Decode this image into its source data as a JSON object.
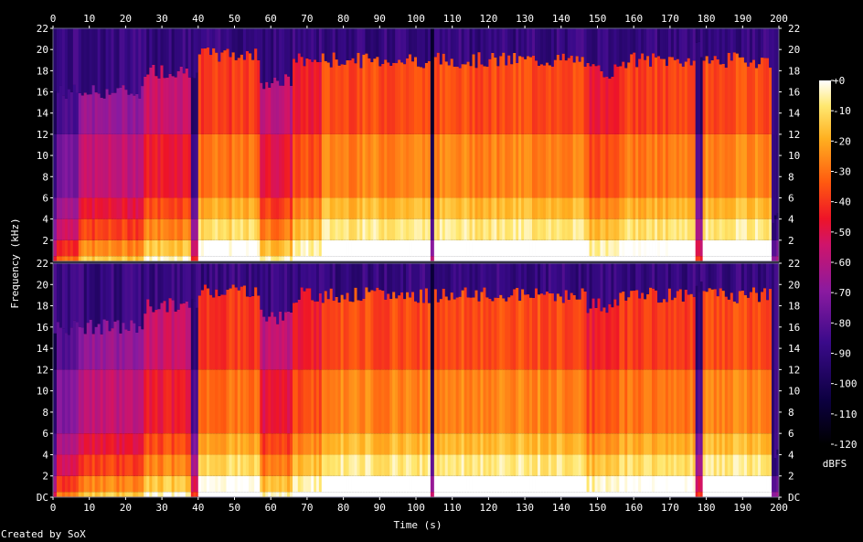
{
  "chart_data": {
    "type": "heatmap",
    "xlabel": "Time (s)",
    "ylabel": "Frequency (kHz)",
    "x_ticks": [
      0,
      10,
      20,
      30,
      40,
      50,
      60,
      70,
      80,
      90,
      100,
      110,
      120,
      130,
      140,
      150,
      160,
      170,
      180,
      190,
      200
    ],
    "xlim": [
      0,
      200
    ],
    "channels": [
      {
        "y_ticks": [
          "22",
          "20",
          "18",
          "16",
          "14",
          "12",
          "10",
          "8",
          "6",
          "4",
          "2"
        ]
      },
      {
        "y_ticks": [
          "22",
          "20",
          "18",
          "16",
          "14",
          "12",
          "10",
          "8",
          "6",
          "4",
          "2",
          "DC"
        ]
      }
    ],
    "ylim_khz": [
      0,
      22
    ],
    "colorbar": {
      "label": "dBFS",
      "ticks": [
        "+0",
        "-10",
        "-20",
        "-30",
        "-40",
        "-50",
        "-60",
        "-70",
        "-80",
        "-90",
        "-100",
        "-110",
        "-120"
      ],
      "range": [
        -120,
        0
      ]
    },
    "segments": [
      {
        "t0": 0,
        "t1": 1,
        "level": 0.25,
        "cutoff": 16
      },
      {
        "t0": 1,
        "t1": 7,
        "level": 0.4,
        "cutoff": 16
      },
      {
        "t0": 7,
        "t1": 25,
        "level": 0.52,
        "cutoff": 16
      },
      {
        "t0": 25,
        "t1": 38,
        "level": 0.62,
        "cutoff": 18
      },
      {
        "t0": 38,
        "t1": 40,
        "level": 0.3,
        "cutoff": 18
      },
      {
        "t0": 40,
        "t1": 57,
        "level": 0.75,
        "cutoff": 19.5
      },
      {
        "t0": 57,
        "t1": 66,
        "level": 0.6,
        "cutoff": 17
      },
      {
        "t0": 66,
        "t1": 74,
        "level": 0.7,
        "cutoff": 19
      },
      {
        "t0": 74,
        "t1": 104,
        "level": 0.78,
        "cutoff": 19
      },
      {
        "t0": 104,
        "t1": 105,
        "level": 0.2,
        "cutoff": 22
      },
      {
        "t0": 105,
        "t1": 147,
        "level": 0.78,
        "cutoff": 19
      },
      {
        "t0": 147,
        "t1": 156,
        "level": 0.7,
        "cutoff": 18
      },
      {
        "t0": 156,
        "t1": 177,
        "level": 0.76,
        "cutoff": 19
      },
      {
        "t0": 177,
        "t1": 179,
        "level": 0.3,
        "cutoff": 20
      },
      {
        "t0": 179,
        "t1": 198,
        "level": 0.78,
        "cutoff": 19
      },
      {
        "t0": 198,
        "t1": 200,
        "level": 0.1,
        "cutoff": 4
      }
    ]
  },
  "footer": {
    "credit": "Created by SoX"
  }
}
